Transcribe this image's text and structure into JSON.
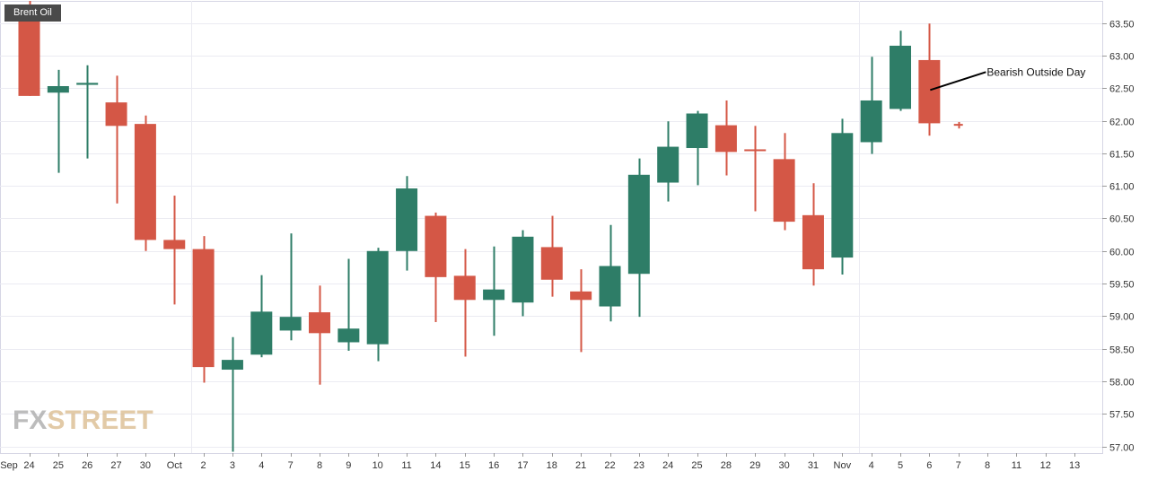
{
  "symbol": "Brent Oil",
  "watermark": {
    "part1": "FX",
    "part2": "STREET"
  },
  "chart_data": {
    "type": "candlestick",
    "title": "",
    "ylim": [
      56.9,
      63.7
    ],
    "y_ticks": [
      "57.00",
      "57.50",
      "58.00",
      "58.50",
      "59.00",
      "59.50",
      "60.00",
      "60.50",
      "61.00",
      "61.50",
      "62.00",
      "62.50",
      "63.00",
      "63.50"
    ],
    "grid": true,
    "up_color": "#2e7d67",
    "down_color": "#d45746",
    "x_labels": [
      "Sep",
      "24",
      "25",
      "26",
      "27",
      "30",
      "Oct",
      "2",
      "3",
      "4",
      "7",
      "8",
      "9",
      "10",
      "11",
      "14",
      "15",
      "16",
      "17",
      "18",
      "21",
      "22",
      "23",
      "24",
      "25",
      "28",
      "29",
      "30",
      "31",
      "Nov",
      "4",
      "5",
      "6",
      "7",
      "8",
      "11",
      "12",
      "13"
    ],
    "candles": [
      {
        "date": "Sep 24",
        "open": 63.75,
        "high": 63.9,
        "low": 62.38,
        "close": 62.38
      },
      {
        "date": "Sep 25",
        "open": 62.43,
        "high": 62.78,
        "low": 61.2,
        "close": 62.53
      },
      {
        "date": "Sep 26",
        "open": 62.55,
        "high": 62.85,
        "low": 61.42,
        "close": 62.58
      },
      {
        "date": "Sep 27",
        "open": 62.28,
        "high": 62.69,
        "low": 60.73,
        "close": 61.92
      },
      {
        "date": "Sep 30",
        "open": 61.95,
        "high": 62.08,
        "low": 60.0,
        "close": 60.17
      },
      {
        "date": "Oct 1",
        "open": 60.17,
        "high": 60.85,
        "low": 59.18,
        "close": 60.03
      },
      {
        "date": "Oct 2",
        "open": 60.03,
        "high": 60.23,
        "low": 57.98,
        "close": 58.22
      },
      {
        "date": "Oct 3",
        "open": 58.18,
        "high": 58.68,
        "low": 56.92,
        "close": 58.33
      },
      {
        "date": "Oct 4",
        "open": 58.41,
        "high": 59.63,
        "low": 58.37,
        "close": 59.07
      },
      {
        "date": "Oct 7",
        "open": 58.78,
        "high": 60.27,
        "low": 58.63,
        "close": 58.99
      },
      {
        "date": "Oct 8",
        "open": 59.06,
        "high": 59.47,
        "low": 57.95,
        "close": 58.74
      },
      {
        "date": "Oct 9",
        "open": 58.6,
        "high": 59.88,
        "low": 58.47,
        "close": 58.81
      },
      {
        "date": "Oct 10",
        "open": 58.57,
        "high": 60.05,
        "low": 58.31,
        "close": 60.0
      },
      {
        "date": "Oct 11",
        "open": 60.0,
        "high": 61.15,
        "low": 59.7,
        "close": 60.96
      },
      {
        "date": "Oct 14",
        "open": 60.54,
        "high": 60.59,
        "low": 58.91,
        "close": 59.6
      },
      {
        "date": "Oct 15",
        "open": 59.62,
        "high": 60.03,
        "low": 58.38,
        "close": 59.25
      },
      {
        "date": "Oct 16",
        "open": 59.25,
        "high": 60.07,
        "low": 58.7,
        "close": 59.41
      },
      {
        "date": "Oct 17",
        "open": 59.21,
        "high": 60.32,
        "low": 59.0,
        "close": 60.22
      },
      {
        "date": "Oct 18",
        "open": 60.06,
        "high": 60.54,
        "low": 59.3,
        "close": 59.56
      },
      {
        "date": "Oct 21",
        "open": 59.38,
        "high": 59.72,
        "low": 58.45,
        "close": 59.25
      },
      {
        "date": "Oct 22",
        "open": 59.15,
        "high": 60.4,
        "low": 58.92,
        "close": 59.77
      },
      {
        "date": "Oct 23",
        "open": 59.65,
        "high": 61.42,
        "low": 58.99,
        "close": 61.17
      },
      {
        "date": "Oct 24",
        "open": 61.05,
        "high": 61.99,
        "low": 60.76,
        "close": 61.6
      },
      {
        "date": "Oct 25",
        "open": 61.58,
        "high": 62.15,
        "low": 61.01,
        "close": 62.11
      },
      {
        "date": "Oct 28",
        "open": 61.93,
        "high": 62.31,
        "low": 61.16,
        "close": 61.52
      },
      {
        "date": "Oct 29",
        "open": 61.56,
        "high": 61.92,
        "low": 60.61,
        "close": 61.54
      },
      {
        "date": "Oct 30",
        "open": 61.41,
        "high": 61.81,
        "low": 60.32,
        "close": 60.45
      },
      {
        "date": "Oct 31",
        "open": 60.55,
        "high": 61.04,
        "low": 59.47,
        "close": 59.72
      },
      {
        "date": "Nov 1",
        "open": 59.9,
        "high": 62.03,
        "low": 59.64,
        "close": 61.81
      },
      {
        "date": "Nov 4",
        "open": 61.67,
        "high": 62.98,
        "low": 61.49,
        "close": 62.31
      },
      {
        "date": "Nov 5",
        "open": 62.18,
        "high": 63.38,
        "low": 62.15,
        "close": 63.15
      },
      {
        "date": "Nov 6",
        "open": 62.93,
        "high": 63.49,
        "low": 61.77,
        "close": 61.96
      },
      {
        "date": "Nov 7",
        "open": 61.95,
        "high": 61.98,
        "low": 61.88,
        "close": 61.94
      }
    ],
    "annotations": [
      {
        "text": "Bearish Outside  Day",
        "date": "Nov 6",
        "value": 62.47
      }
    ]
  }
}
